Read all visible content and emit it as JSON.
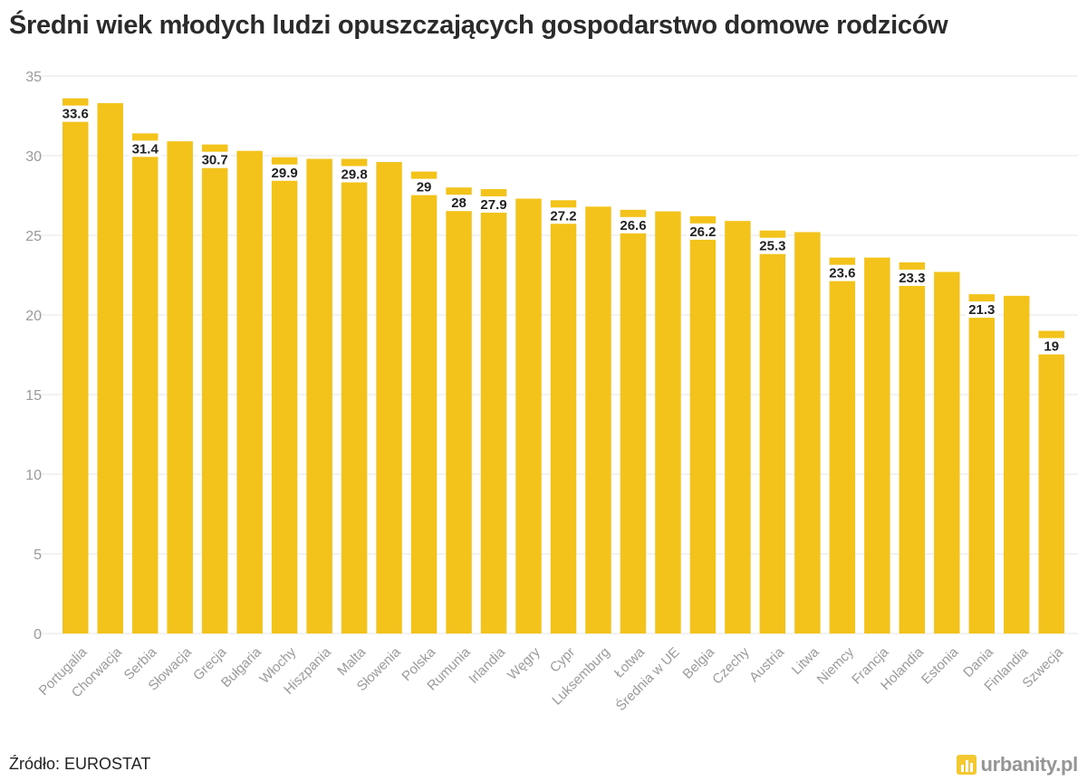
{
  "title": "Średni wiek młodych ludzi opuszczających gospodarstwo domowe rodziców",
  "source": "Źródło: EUROSTAT",
  "brand": {
    "name": "urbanity.pl",
    "icon": "bar-chart-logo-icon"
  },
  "colors": {
    "bar": "#f3c31b",
    "label_bg": "#ffffff",
    "label_text": "#222222",
    "grid": "#e6e6e6",
    "axis_text": "#9a9a9a"
  },
  "chart_data": {
    "type": "bar",
    "title": "Średni wiek młodych ludzi opuszczających gospodarstwo domowe rodziców",
    "xlabel": "",
    "ylabel": "",
    "ylim": [
      0,
      35
    ],
    "yticks": [
      0,
      5,
      10,
      15,
      20,
      25,
      30,
      35
    ],
    "grid": true,
    "legend": "none",
    "categories": [
      "Portugalia",
      "Chorwacja",
      "Serbia",
      "Słowacja",
      "Grecja",
      "Bułgaria",
      "Włochy",
      "Hiszpania",
      "Malta",
      "Słowenia",
      "Polska",
      "Rumunia",
      "Irlandia",
      "Węgry",
      "Cypr",
      "Luksemburg",
      "Łotwa",
      "Średnia w UE",
      "Belgia",
      "Czechy",
      "Austria",
      "Litwa",
      "Niemcy",
      "Francja",
      "Holandia",
      "Estonia",
      "Dania",
      "Finlandia",
      "Szwecja"
    ],
    "values": [
      33.6,
      33.3,
      31.4,
      30.9,
      30.7,
      30.3,
      29.9,
      29.8,
      29.8,
      29.6,
      29.0,
      28.0,
      27.9,
      27.3,
      27.2,
      26.8,
      26.6,
      26.5,
      26.2,
      25.9,
      25.3,
      25.2,
      23.6,
      23.6,
      23.3,
      22.7,
      21.3,
      21.2,
      19.0
    ],
    "data_labels": [
      "33.6",
      "",
      "31.4",
      "",
      "30.7",
      "",
      "29.9",
      "",
      "29.8",
      "",
      "29",
      "28",
      "27.9",
      "",
      "27.2",
      "",
      "26.6",
      "",
      "26.2",
      "",
      "25.3",
      "",
      "23.6",
      "",
      "23.3",
      "",
      "21.3",
      "",
      "19"
    ]
  }
}
